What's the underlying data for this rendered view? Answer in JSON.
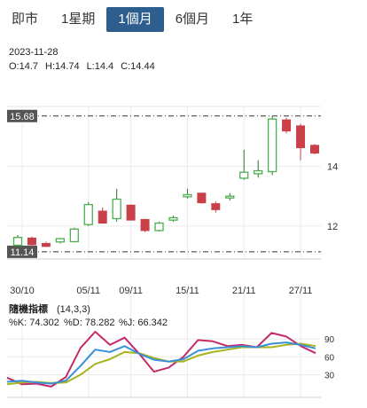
{
  "tabs": [
    {
      "label": "即市",
      "active": false
    },
    {
      "label": "1星期",
      "active": false
    },
    {
      "label": "1個月",
      "active": true
    },
    {
      "label": "6個月",
      "active": false
    },
    {
      "label": "1年",
      "active": false
    }
  ],
  "info": {
    "date": "2023-11-28",
    "o": "O:14.7",
    "h": "H:14.74",
    "l": "L:14.4",
    "c": "C:14.44"
  },
  "chart_data": [
    {
      "type": "candlestick",
      "x_labels": [
        "30/10",
        "05/11",
        "09/11",
        "15/11",
        "21/11",
        "27/11"
      ],
      "y_ticks": [
        12,
        14
      ],
      "ylim": [
        10.9,
        16.0
      ],
      "ref_lines": [
        {
          "label": "15.68",
          "value": 15.68
        },
        {
          "label": "11.14",
          "value": 11.14
        }
      ],
      "colors": {
        "up": "#4caf50",
        "down": "#c94048"
      },
      "candles": [
        {
          "o": 11.36,
          "h": 11.7,
          "l": 11.3,
          "c": 11.62
        },
        {
          "o": 11.6,
          "h": 11.65,
          "l": 11.3,
          "c": 11.38
        },
        {
          "o": 11.42,
          "h": 11.48,
          "l": 11.3,
          "c": 11.32
        },
        {
          "o": 11.47,
          "h": 11.6,
          "l": 11.42,
          "c": 11.58
        },
        {
          "o": 11.48,
          "h": 11.95,
          "l": 11.45,
          "c": 11.9
        },
        {
          "o": 12.05,
          "h": 12.8,
          "l": 12.0,
          "c": 12.72
        },
        {
          "o": 12.5,
          "h": 12.62,
          "l": 12.08,
          "c": 12.1
        },
        {
          "o": 12.25,
          "h": 13.25,
          "l": 12.15,
          "c": 12.9
        },
        {
          "o": 12.7,
          "h": 12.72,
          "l": 12.2,
          "c": 12.2
        },
        {
          "o": 12.22,
          "h": 12.25,
          "l": 11.8,
          "c": 11.85
        },
        {
          "o": 11.85,
          "h": 12.15,
          "l": 11.82,
          "c": 12.1
        },
        {
          "o": 12.2,
          "h": 12.35,
          "l": 12.15,
          "c": 12.28
        },
        {
          "o": 12.98,
          "h": 13.25,
          "l": 12.92,
          "c": 13.05
        },
        {
          "o": 13.1,
          "h": 13.12,
          "l": 12.75,
          "c": 12.78
        },
        {
          "o": 12.75,
          "h": 12.82,
          "l": 12.45,
          "c": 12.55
        },
        {
          "o": 12.98,
          "h": 13.1,
          "l": 12.85,
          "c": 13.0
        },
        {
          "o": 13.6,
          "h": 14.55,
          "l": 13.55,
          "c": 13.8
        },
        {
          "o": 13.75,
          "h": 14.2,
          "l": 13.62,
          "c": 13.85
        },
        {
          "o": 13.82,
          "h": 15.68,
          "l": 13.7,
          "c": 15.58
        },
        {
          "o": 15.55,
          "h": 15.62,
          "l": 15.1,
          "c": 15.18
        },
        {
          "o": 15.35,
          "h": 15.42,
          "l": 14.2,
          "c": 14.62
        },
        {
          "o": 14.7,
          "h": 14.74,
          "l": 14.4,
          "c": 14.44
        }
      ]
    },
    {
      "type": "line",
      "title": "隨機指標",
      "params": "(14,3,3)",
      "readout": {
        "k": "%K: 74.302",
        "d": "%D: 78.282",
        "j": "%J: 66.342"
      },
      "y_ticks": [
        30,
        60,
        90
      ],
      "ylim": [
        -8,
        105
      ],
      "series": [
        {
          "name": "%K",
          "color": "#3a8fd8",
          "values": [
            18,
            20,
            17,
            15,
            20,
            45,
            72,
            68,
            78,
            65,
            55,
            52,
            56,
            70,
            74,
            76,
            78,
            76,
            82,
            84,
            80,
            74
          ]
        },
        {
          "name": "%D",
          "color": "#a8b41e",
          "values": [
            14,
            17,
            18,
            16,
            17,
            30,
            48,
            56,
            68,
            66,
            58,
            52,
            52,
            62,
            68,
            72,
            76,
            76,
            76,
            80,
            82,
            78
          ]
        },
        {
          "name": "%J",
          "color": "#c42a6a",
          "values": [
            25,
            14,
            15,
            10,
            26,
            75,
            102,
            80,
            92,
            65,
            35,
            42,
            60,
            88,
            86,
            78,
            80,
            76,
            100,
            94,
            78,
            66
          ]
        }
      ]
    }
  ]
}
